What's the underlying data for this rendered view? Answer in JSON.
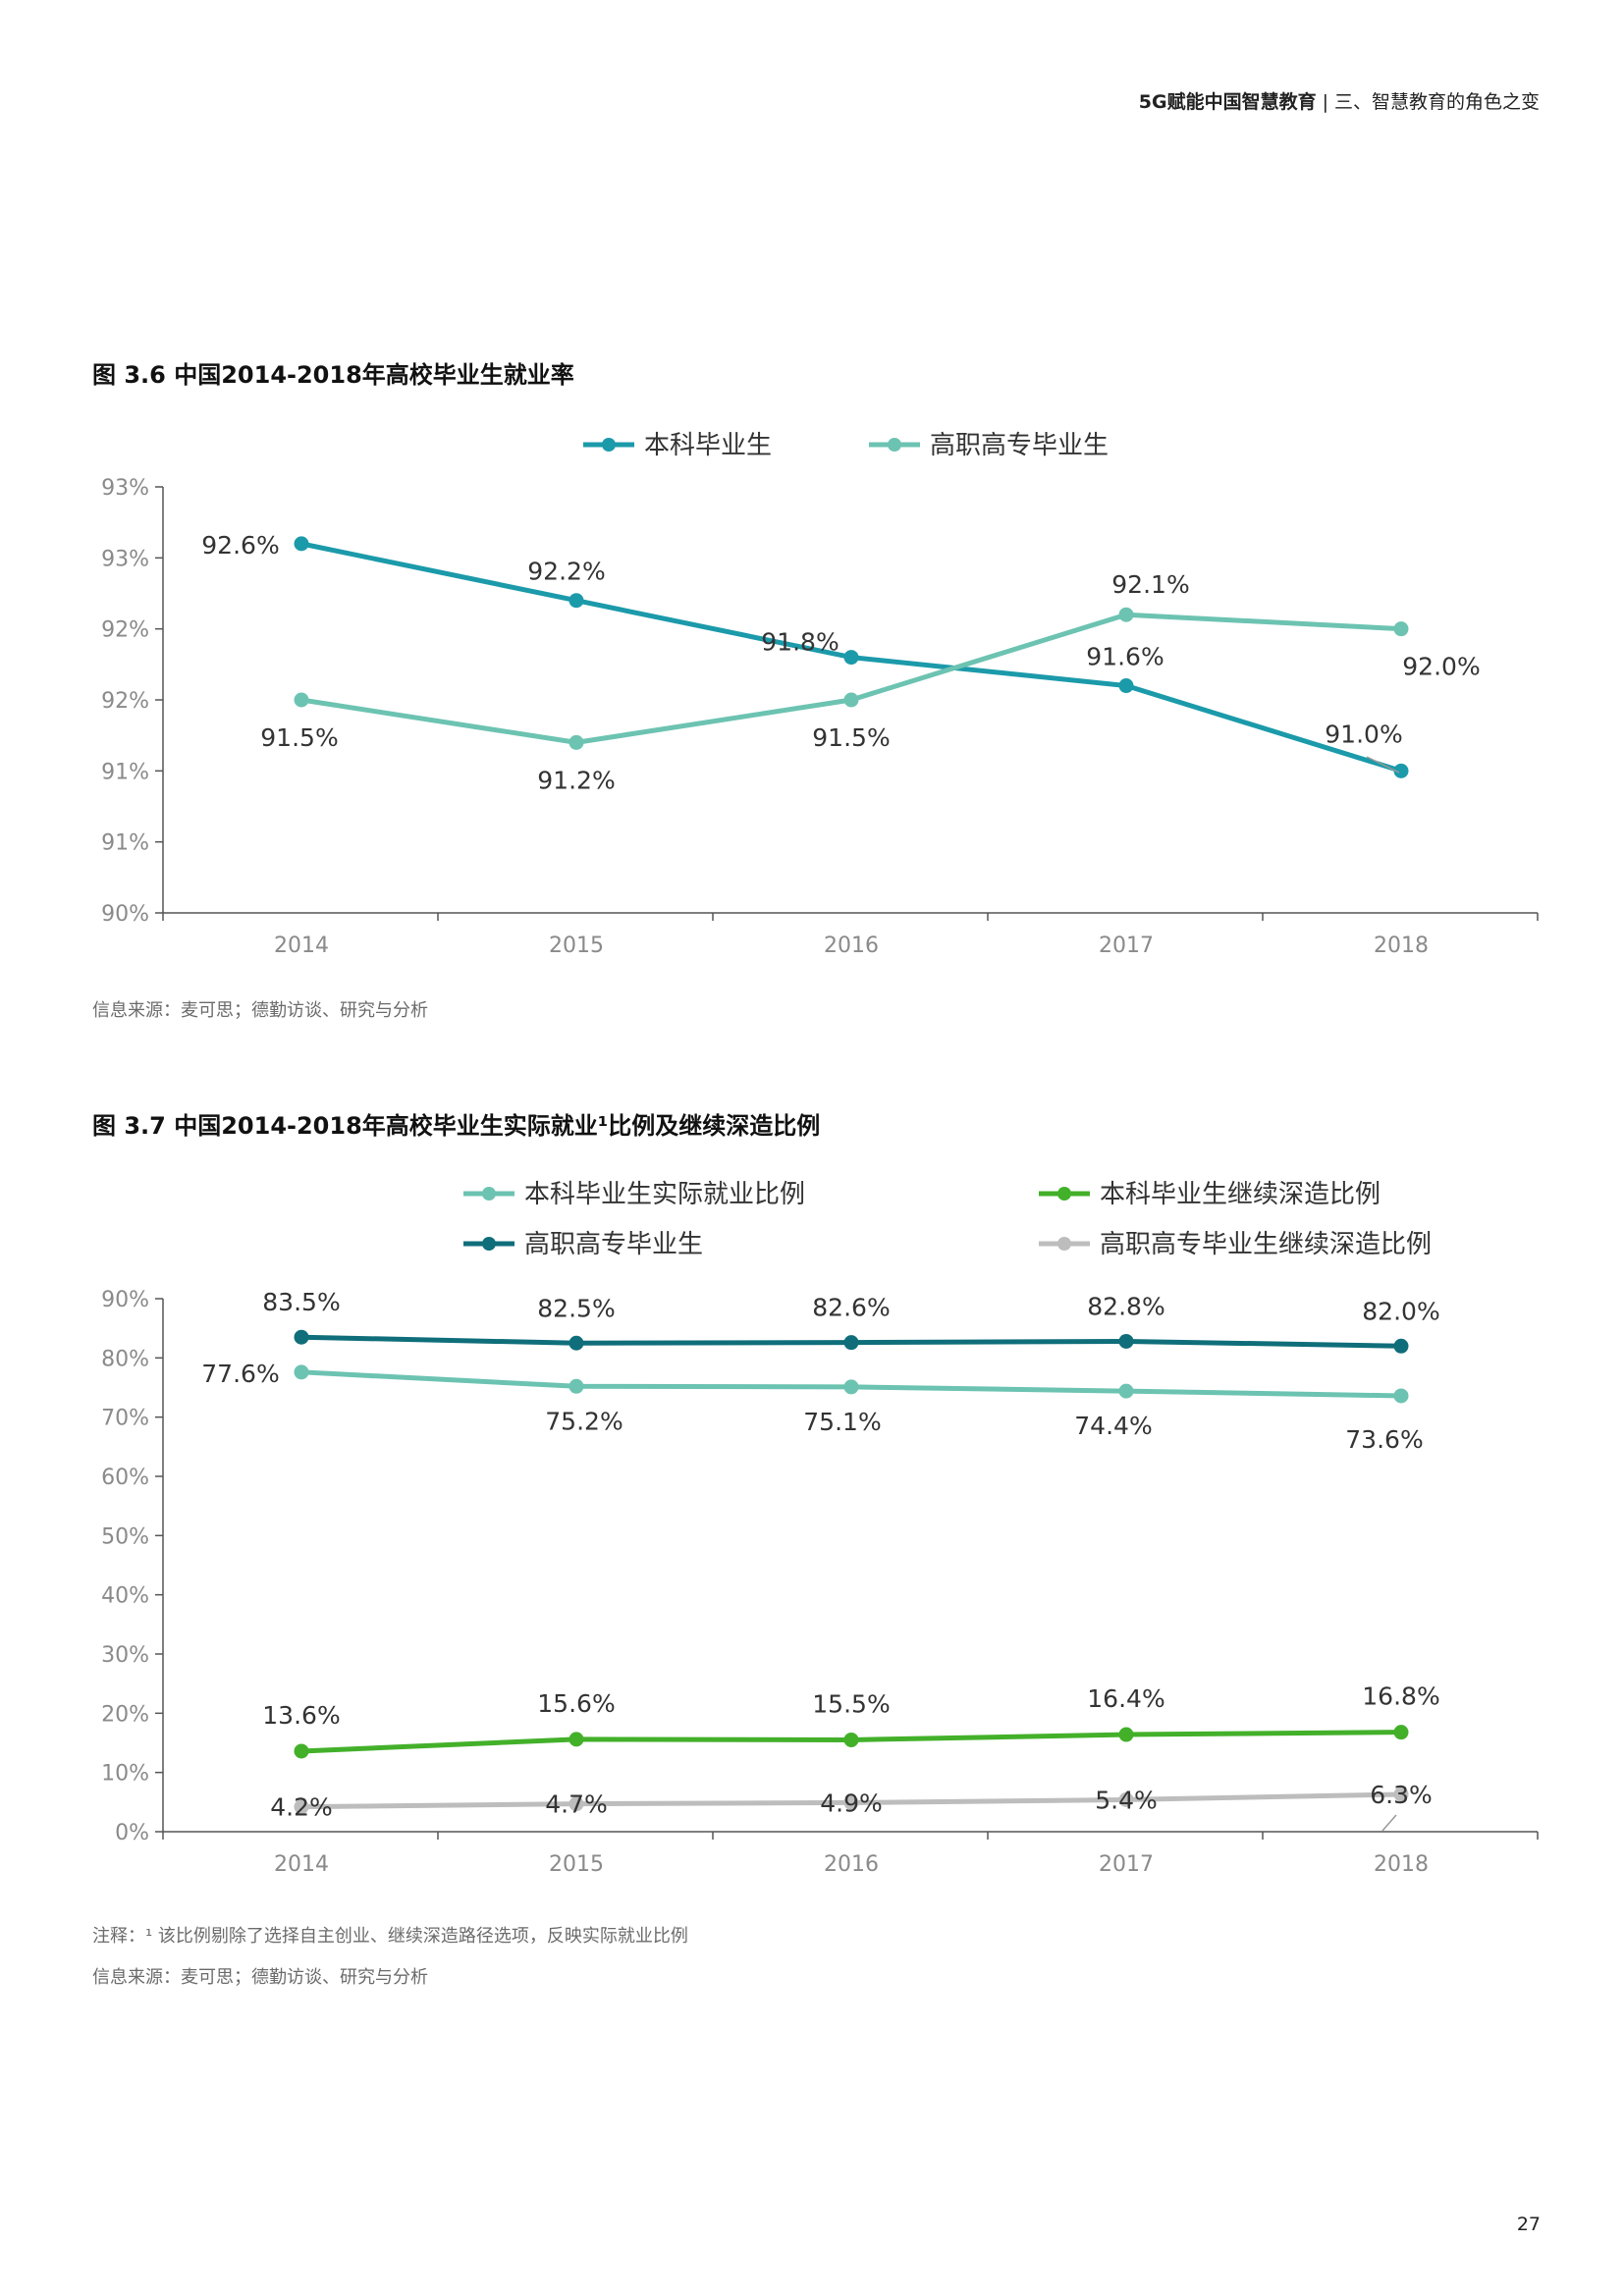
{
  "header": {
    "brand": "5G赋能中国智慧教育",
    "separator": "|",
    "section": "三、智慧教育的角色之变"
  },
  "figure1": {
    "title": "图 3.6 中国2014-2018年高校毕业生就业率",
    "source": "信息来源：麦可思；德勤访谈、研究与分析"
  },
  "figure2": {
    "title": "图 3.7 中国2014-2018年高校毕业生实际就业¹比例及继续深造比例",
    "note": "注释：¹ 该比例剔除了选择自主创业、继续深造路径选项，反映实际就业比例",
    "source": "信息来源：麦可思；德勤访谈、研究与分析"
  },
  "page_number": "27",
  "chart_data": [
    {
      "type": "line",
      "x": [
        "2014",
        "2015",
        "2016",
        "2017",
        "2018"
      ],
      "y_tick_labels": [
        "90%",
        "91%",
        "91%",
        "92%",
        "92%",
        "93%",
        "93%"
      ],
      "ylim": [
        90.0,
        93.0
      ],
      "grid": false,
      "legend_position": "top",
      "series": [
        {
          "name": "本科毕业生",
          "color": "#1b9aaa",
          "values": [
            92.6,
            92.2,
            91.8,
            91.6,
            91.0
          ],
          "labels": [
            "92.6%",
            "92.2%",
            "91.8%",
            "91.6%",
            "91.0%"
          ]
        },
        {
          "name": "高职高专毕业生",
          "color": "#6cc3b1",
          "values": [
            91.5,
            91.2,
            91.5,
            92.1,
            92.0
          ],
          "labels": [
            "91.5%",
            "91.2%",
            "91.5%",
            "92.1%",
            "92.0%"
          ]
        }
      ]
    },
    {
      "type": "line",
      "x": [
        "2014",
        "2015",
        "2016",
        "2017",
        "2018"
      ],
      "y_tick_labels": [
        "0%",
        "10%",
        "20%",
        "30%",
        "40%",
        "50%",
        "60%",
        "70%",
        "80%",
        "90%"
      ],
      "ylim": [
        0,
        90
      ],
      "grid": false,
      "legend_position": "top",
      "series": [
        {
          "name": "本科毕业生实际就业比例",
          "color": "#6cc3b1",
          "values": [
            77.6,
            75.2,
            75.1,
            74.4,
            73.6
          ],
          "labels": [
            "77.6%",
            "75.2%",
            "75.1%",
            "74.4%",
            "73.6%"
          ]
        },
        {
          "name": "本科毕业生继续深造比例",
          "color": "#43b02a",
          "values": [
            13.6,
            15.6,
            15.5,
            16.4,
            16.8
          ],
          "labels": [
            "13.6%",
            "15.6%",
            "15.5%",
            "16.4%",
            "16.8%"
          ]
        },
        {
          "name": "高职高专毕业生",
          "color": "#0f6e7a",
          "values": [
            83.5,
            82.5,
            82.6,
            82.8,
            82.0
          ],
          "labels": [
            "83.5%",
            "82.5%",
            "82.6%",
            "82.8%",
            "82.0%"
          ]
        },
        {
          "name": "高职高专毕业生继续深造比例",
          "color": "#bdbdbd",
          "values": [
            4.2,
            4.7,
            4.9,
            5.4,
            6.3
          ],
          "labels": [
            "4.2%",
            "4.7%",
            "4.9%",
            "5.4%",
            "6.3%"
          ]
        }
      ]
    }
  ]
}
